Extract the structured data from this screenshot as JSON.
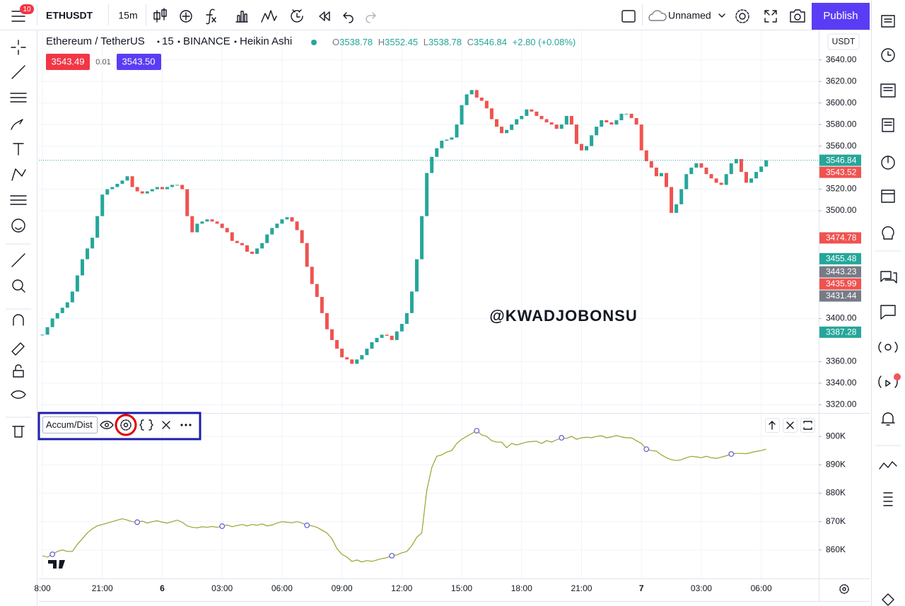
{
  "toolbar": {
    "badge": "10",
    "symbol": "ETHUSDT",
    "interval": "15m",
    "layout_name": "Unnamed",
    "publish": "Publish"
  },
  "legend": {
    "name": "Ethereum / TetherUS",
    "interval": "15",
    "exchange": "BINANCE",
    "chart_style": "Heikin Ashi",
    "ohlc": [
      {
        "key": "O",
        "value": "3538.78"
      },
      {
        "key": "H",
        "value": "3552.45"
      },
      {
        "key": "L",
        "value": "3538.78"
      },
      {
        "key": "C",
        "value": "3546.84"
      }
    ],
    "change": "+2.80 (+0.08%)",
    "bid": "3543.49",
    "spread": "0.01",
    "ask": "3543.50"
  },
  "currency": "USDT",
  "watermark": "@KWADJOBONSU",
  "chart_data": [
    {
      "type": "candlestick",
      "categories": [
        "8:00",
        null,
        null,
        null,
        null,
        null,
        null,
        null,
        null,
        null,
        null,
        null,
        "21:00",
        null,
        null,
        null,
        null,
        null,
        null,
        null,
        null,
        null,
        null,
        null,
        "6",
        null,
        null,
        null,
        null,
        null,
        null,
        null,
        null,
        null,
        null,
        null,
        "03:00",
        null,
        null,
        null,
        null,
        null,
        null,
        null,
        null,
        null,
        null,
        null,
        "06:00",
        null,
        null,
        null,
        null,
        null,
        null,
        null,
        null,
        null,
        null,
        null,
        "09:00",
        null,
        null,
        null,
        null,
        null,
        null,
        null,
        null,
        null,
        null,
        null,
        "12:00",
        null,
        null,
        null,
        null,
        null,
        null,
        null,
        null,
        null,
        null,
        null,
        "15:00",
        null,
        null,
        null,
        null,
        null,
        null,
        null,
        null,
        null,
        null,
        null,
        "18:00",
        null,
        null,
        null,
        null,
        null,
        null,
        null,
        null,
        null,
        null,
        null,
        "21:00",
        null,
        null,
        null,
        null,
        null,
        null,
        null,
        null,
        null,
        null,
        null,
        "7",
        null,
        null,
        null,
        null,
        null,
        null,
        null,
        null,
        null,
        null,
        null,
        "03:00",
        null,
        null,
        null,
        null,
        null,
        null,
        null,
        null,
        null,
        null,
        null,
        "06:00",
        null
      ],
      "values": [
        3385,
        3392,
        3400,
        3405,
        3410,
        3415,
        3425,
        3440,
        3455,
        3465,
        3475,
        3495,
        3515,
        3520,
        3522,
        3525,
        3528,
        3532,
        3522,
        3518,
        3516,
        3518,
        3520,
        3522,
        3520,
        3522,
        3524,
        3524,
        3520,
        3495,
        3480,
        3488,
        3490,
        3492,
        3490,
        3488,
        3484,
        3480,
        3472,
        3470,
        3468,
        3462,
        3460,
        3465,
        3470,
        3478,
        3484,
        3488,
        3492,
        3494,
        3490,
        3482,
        3470,
        3448,
        3432,
        3420,
        3405,
        3390,
        3380,
        3372,
        3364,
        3362,
        3358,
        3362,
        3366,
        3372,
        3378,
        3382,
        3385,
        3384,
        3380,
        3388,
        3395,
        3405,
        3425,
        3455,
        3495,
        3535,
        3550,
        3558,
        3565,
        3566,
        3568,
        3580,
        3598,
        3608,
        3612,
        3605,
        3602,
        3595,
        3585,
        3578,
        3572,
        3575,
        3580,
        3585,
        3588,
        3594,
        3592,
        3588,
        3585,
        3582,
        3580,
        3576,
        3580,
        3588,
        3580,
        3562,
        3556,
        3560,
        3570,
        3578,
        3584,
        3582,
        3580,
        3584,
        3590,
        3590,
        3586,
        3580,
        3556,
        3546,
        3540,
        3532,
        3535,
        3522,
        3498,
        3506,
        3520,
        3534,
        3540,
        3544,
        3540,
        3534,
        3530,
        3526,
        3524,
        3534,
        3544,
        3548,
        3536,
        3526,
        3530,
        3536,
        3541,
        3546.84
      ],
      "colors": {
        "up": "#26a69a",
        "down": "#ef5350"
      },
      "ylim": [
        3313,
        3668
      ],
      "yticks": [
        {
          "value": 3320,
          "label": "3320.00"
        },
        {
          "value": 3340,
          "label": "3340.00"
        },
        {
          "value": 3360,
          "label": "3360.00"
        },
        {
          "value": 3400,
          "label": "3400.00"
        },
        {
          "value": 3500,
          "label": "3500.00"
        },
        {
          "value": 3520,
          "label": "3520.00"
        },
        {
          "value": 3560,
          "label": "3560.00"
        },
        {
          "value": 3580,
          "label": "3580.00"
        },
        {
          "value": 3600,
          "label": "3600.00"
        },
        {
          "value": 3620,
          "label": "3620.00"
        },
        {
          "value": 3640,
          "label": "3640.00"
        }
      ],
      "grid": true,
      "price_labels": [
        {
          "value": 3546.84,
          "color": "#26a69a",
          "line": true
        },
        {
          "value": 3543.52,
          "color": "#ef5350"
        },
        {
          "value": 3474.78,
          "color": "#ef5350"
        },
        {
          "value": 3455.48,
          "color": "#26a69a"
        },
        {
          "value": 3443.23,
          "color": "#787b86"
        },
        {
          "value": 3435.99,
          "color": "#ef5350"
        },
        {
          "value": 3431.44,
          "color": "#787b86"
        },
        {
          "value": 3387.28,
          "color": "#26a69a"
        }
      ]
    },
    {
      "type": "line",
      "series": [
        {
          "name": "Accum/Dist",
          "color": "#9ba22e",
          "values": [
            858000,
            857500,
            858500,
            859500,
            860000,
            859500,
            859500,
            862000,
            864000,
            866000,
            867500,
            868500,
            869000,
            869500,
            870000,
            870500,
            871000,
            870500,
            870000,
            869800,
            870200,
            869500,
            870000,
            870300,
            869800,
            869500,
            870000,
            870500,
            869800,
            868500,
            868000,
            867800,
            868200,
            868000,
            868300,
            868000,
            868400,
            868800,
            868200,
            868600,
            869000,
            868500,
            869000,
            868700,
            869200,
            868500,
            868800,
            869500,
            870000,
            869800,
            869600,
            870000,
            869500,
            868700,
            868500,
            868000,
            867000,
            866000,
            864000,
            860500,
            858500,
            857500,
            856000,
            856500,
            855800,
            856300,
            856000,
            856500,
            857000,
            857300,
            858000,
            858300,
            859000,
            859500,
            861500,
            864500,
            866000,
            881000,
            889000,
            893000,
            893500,
            894500,
            895000,
            897500,
            899000,
            900000,
            901000,
            902000,
            900500,
            900000,
            898500,
            898000,
            898000,
            896000,
            897500,
            897000,
            897500,
            898000,
            898200,
            898300,
            897500,
            898500,
            898000,
            898800,
            899500,
            899300,
            900000,
            899000,
            899500,
            899700,
            899500,
            900000,
            900200,
            899500,
            899800,
            900300,
            899800,
            899500,
            899500,
            898500,
            897500,
            895500,
            895000,
            894800,
            893500,
            892500,
            891800,
            891500,
            891800,
            892500,
            893000,
            892800,
            892500,
            893000,
            892500,
            892300,
            892700,
            893200,
            893800,
            894000,
            894000,
            893900,
            894300,
            894700,
            895000,
            895500
          ]
        }
      ],
      "ylim": [
        850000,
        908000
      ],
      "yticks": [
        {
          "value": 860000,
          "label": "860K"
        },
        {
          "value": 870000,
          "label": "870K"
        },
        {
          "value": 880000,
          "label": "880K"
        },
        {
          "value": 890000,
          "label": "890K"
        },
        {
          "value": 900000,
          "label": "900K"
        }
      ],
      "grid": true
    }
  ]
}
